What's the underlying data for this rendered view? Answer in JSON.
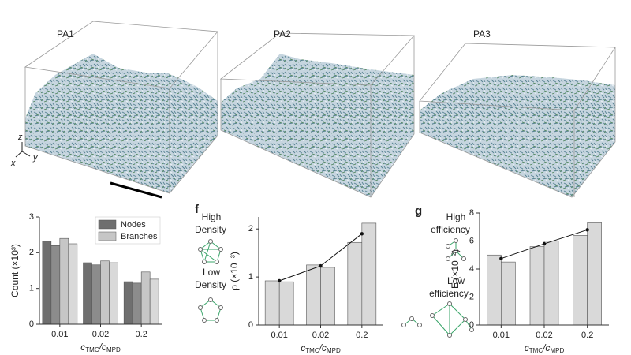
{
  "panels": {
    "pa1": "PA1",
    "pa2": "PA2",
    "pa3": "PA3"
  },
  "axis_glyphs": {
    "z": "z",
    "x": "x",
    "y": "y"
  },
  "schematics": {
    "f_high": [
      "High",
      "Density"
    ],
    "f_low": [
      "Low",
      "Density"
    ],
    "g_high": [
      "High",
      "efficiency"
    ],
    "g_low": [
      "Low",
      "efficiency"
    ]
  },
  "chart_data": [
    {
      "type": "bar",
      "ylabel": "Count (×10³)",
      "xlabel_parts": [
        "c",
        "TMC",
        "/c",
        "MPD"
      ],
      "categories": [
        "0.01",
        "0.02",
        "0.2"
      ],
      "series": [
        {
          "name": "Nodes",
          "color": "#6f6f6f",
          "values": [
            2.32,
            1.72,
            1.19
          ]
        },
        {
          "color": "#8c8c8c",
          "values": [
            2.2,
            1.66,
            1.15
          ]
        },
        {
          "name": "Branches",
          "color": "#c6c6c6",
          "values": [
            2.4,
            1.77,
            1.46
          ]
        },
        {
          "color": "#d9d9d9",
          "values": [
            2.25,
            1.72,
            1.26
          ]
        }
      ],
      "ylim": [
        0,
        3
      ],
      "yticks": [
        0,
        1,
        2,
        3
      ],
      "legend": "upper right"
    },
    {
      "type": "bar",
      "label": "f",
      "ylabel": "ρ (×10⁻³)",
      "xlabel_parts": [
        "c",
        "TMC",
        "/c",
        "MPD"
      ],
      "categories": [
        "0.01",
        "0.02",
        "0.2"
      ],
      "series": [
        {
          "color": "#d9d9d9",
          "values": [
            0.92,
            1.25,
            1.72
          ]
        },
        {
          "color": "#d9d9d9",
          "values": [
            0.9,
            1.2,
            2.12
          ]
        }
      ],
      "line": {
        "color": "#111111",
        "values": [
          0.92,
          1.23,
          1.9
        ]
      },
      "ylim": [
        0,
        2.25
      ],
      "yticks": [
        0,
        1,
        2
      ]
    },
    {
      "type": "bar",
      "label": "g",
      "ylabel": "E (×10⁻²)",
      "xlabel_parts": [
        "c",
        "TMC",
        "/c",
        "MPD"
      ],
      "categories": [
        "0.01",
        "0.02",
        "0.2"
      ],
      "series": [
        {
          "color": "#d9d9d9",
          "values": [
            5.0,
            5.6,
            6.4
          ]
        },
        {
          "color": "#d9d9d9",
          "values": [
            4.5,
            6.0,
            7.3
          ]
        }
      ],
      "line": {
        "color": "#111111",
        "values": [
          4.75,
          5.8,
          6.8
        ]
      },
      "ylim": [
        0,
        8
      ],
      "yticks": [
        0,
        2,
        4,
        6,
        8
      ]
    }
  ]
}
